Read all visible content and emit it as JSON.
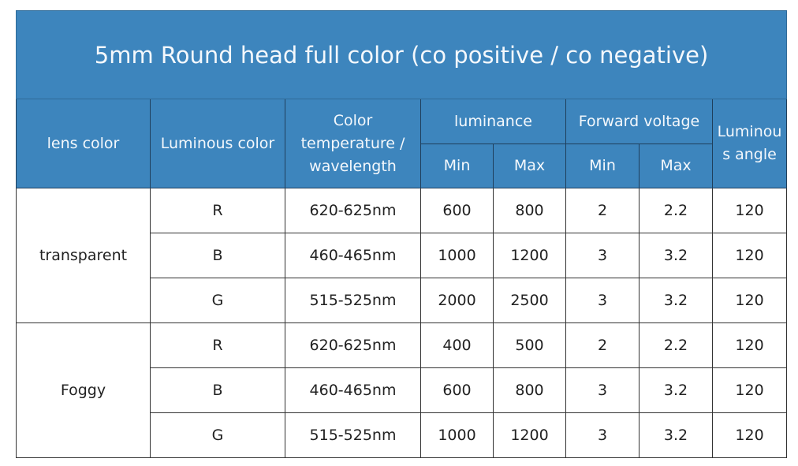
{
  "title": "5mm Round head full color (co positive / co negative)",
  "colors": {
    "header_bg": "#3d85bd",
    "header_text": "#f4f8fc"
  },
  "headers": {
    "lens_color": "lens color",
    "luminous_color": "Luminous color",
    "color_temp": "Color temperature / wavelength",
    "luminance": "luminance",
    "forward_voltage": "Forward voltage",
    "angle": "Luminous angle",
    "min": "Min",
    "max": "Max"
  },
  "groups": [
    {
      "lens": "transparent",
      "rows": [
        {
          "color": "R",
          "wavelength": "620-625nm",
          "lum_min": "600",
          "lum_max": "800",
          "v_min": "2",
          "v_max": "2.2",
          "angle": "120"
        },
        {
          "color": "B",
          "wavelength": "460-465nm",
          "lum_min": "1000",
          "lum_max": "1200",
          "v_min": "3",
          "v_max": "3.2",
          "angle": "120"
        },
        {
          "color": "G",
          "wavelength": "515-525nm",
          "lum_min": "2000",
          "lum_max": "2500",
          "v_min": "3",
          "v_max": "3.2",
          "angle": "120"
        }
      ]
    },
    {
      "lens": "Foggy",
      "rows": [
        {
          "color": "R",
          "wavelength": "620-625nm",
          "lum_min": "400",
          "lum_max": "500",
          "v_min": "2",
          "v_max": "2.2",
          "angle": "120"
        },
        {
          "color": "B",
          "wavelength": "460-465nm",
          "lum_min": "600",
          "lum_max": "800",
          "v_min": "3",
          "v_max": "3.2",
          "angle": "120"
        },
        {
          "color": "G",
          "wavelength": "515-525nm",
          "lum_min": "1000",
          "lum_max": "1200",
          "v_min": "3",
          "v_max": "3.2",
          "angle": "120"
        }
      ]
    }
  ]
}
